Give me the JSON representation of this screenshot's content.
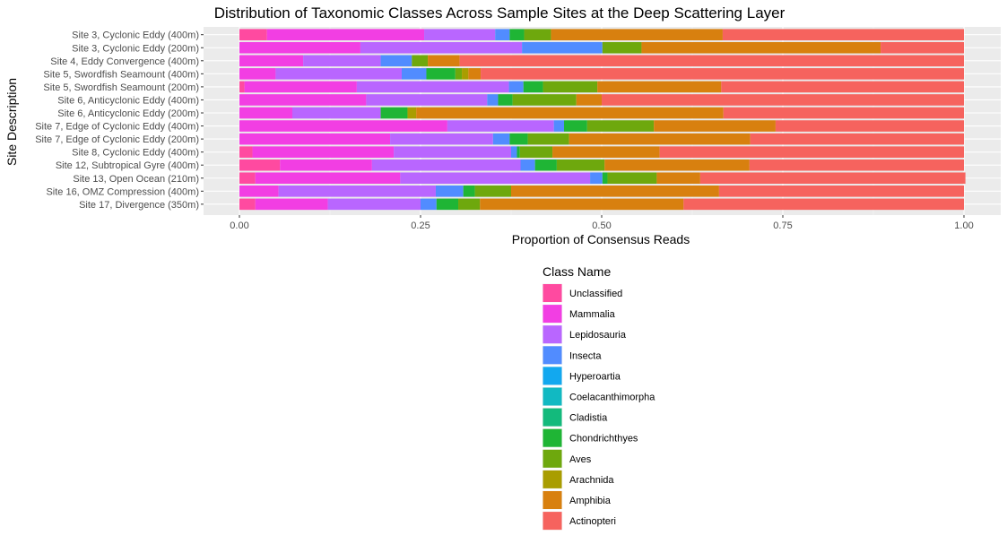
{
  "chart_data": {
    "type": "bar",
    "orientation": "horizontal",
    "stacked": true,
    "title": "Distribution of Taxonomic Classes Across Sample Sites at the Deep Scattering Layer",
    "xlabel": "Proportion of Consensus Reads",
    "ylabel": "Site Description",
    "xlim": [
      0,
      1
    ],
    "x_ticks": [
      0,
      0.25,
      0.5,
      0.75,
      1
    ],
    "x_tick_labels": [
      "0.00",
      "0.25",
      "0.50",
      "0.75",
      "1.00"
    ],
    "grid": true,
    "legend_position": "bottom",
    "legend_title": "Class Name",
    "categories": [
      "Site 3, Cyclonic Eddy (400m)",
      "Site 3, Cyclonic Eddy (200m)",
      "Site 4, Eddy Convergence (400m)",
      "Site 5, Swordfish Seamount (400m)",
      "Site 5, Swordfish Seamount (200m)",
      "Site 6, Anticyclonic Eddy (400m)",
      "Site 6, Anticyclonic Eddy (200m)",
      "Site 7, Edge of Cyclonic Eddy (400m)",
      "Site 7, Edge of Cyclonic Eddy (200m)",
      "Site 8, Cyclonic Eddy (400m)",
      "Site 12, Subtropical Gyre (400m)",
      "Site 13, Open Ocean (210m)",
      "Site 16, OMZ Compression (400m)",
      "Site 17, Divergence (350m)"
    ],
    "series": [
      {
        "name": "Unclassified",
        "color": "#FF4AA0",
        "values": [
          0.038,
          0.0,
          0.0,
          0.0,
          0.007,
          0.0,
          0.0,
          0.0,
          0.0,
          0.018,
          0.056,
          0.022,
          0.0,
          0.022
        ]
      },
      {
        "name": "Mammalia",
        "color": "#F23EE3",
        "values": [
          0.217,
          0.167,
          0.088,
          0.05,
          0.155,
          0.175,
          0.073,
          0.287,
          0.208,
          0.195,
          0.127,
          0.2,
          0.054,
          0.1
        ]
      },
      {
        "name": "Lepidosauria",
        "color": "#B966FF",
        "values": [
          0.098,
          0.223,
          0.107,
          0.174,
          0.21,
          0.167,
          0.122,
          0.147,
          0.142,
          0.162,
          0.205,
          0.262,
          0.217,
          0.128
        ]
      },
      {
        "name": "Insecta",
        "color": "#518CFF",
        "values": [
          0.02,
          0.111,
          0.043,
          0.034,
          0.02,
          0.015,
          0.0,
          0.014,
          0.023,
          0.008,
          0.02,
          0.017,
          0.038,
          0.022
        ]
      },
      {
        "name": "Hyperoartia",
        "color": "#12A8EF",
        "values": [
          0.0,
          0.0,
          0.0,
          0.0,
          0.0,
          0.0,
          0.0,
          0.0,
          0.0,
          0.0,
          0.0,
          0.0,
          0.0,
          0.0
        ]
      },
      {
        "name": "Coelacanthimorpha",
        "color": "#11B9C2",
        "values": [
          0.0,
          0.0,
          0.0,
          0.0,
          0.0,
          0.0,
          0.0,
          0.0,
          0.0,
          0.0,
          0.0,
          0.0,
          0.0,
          0.0
        ]
      },
      {
        "name": "Cladistia",
        "color": "#13BA7C",
        "values": [
          0.0,
          0.0,
          0.0,
          0.0,
          0.0,
          0.0,
          0.0,
          0.0,
          0.0,
          0.0,
          0.0,
          0.0,
          0.0,
          0.0
        ]
      },
      {
        "name": "Chondrichthyes",
        "color": "#1FB535",
        "values": [
          0.02,
          0.0,
          0.0,
          0.04,
          0.027,
          0.02,
          0.037,
          0.032,
          0.025,
          0.004,
          0.03,
          0.007,
          0.016,
          0.03
        ]
      },
      {
        "name": "Aves",
        "color": "#6EA80D",
        "values": [
          0.037,
          0.054,
          0.022,
          0.009,
          0.075,
          0.088,
          0.0,
          0.092,
          0.057,
          0.045,
          0.066,
          0.068,
          0.05,
          0.03
        ]
      },
      {
        "name": "Arachnida",
        "color": "#A99D00",
        "values": [
          0.0,
          0.0,
          0.0,
          0.009,
          0.0,
          0.0,
          0.012,
          0.0,
          0.0,
          0.0,
          0.0,
          0.0,
          0.0,
          0.0
        ]
      },
      {
        "name": "Amphibia",
        "color": "#D8800F",
        "values": [
          0.237,
          0.33,
          0.044,
          0.017,
          0.171,
          0.035,
          0.424,
          0.168,
          0.25,
          0.148,
          0.2,
          0.06,
          0.287,
          0.281
        ]
      },
      {
        "name": "Actinopteri",
        "color": "#F6635E",
        "values": [
          0.333,
          0.115,
          0.696,
          0.667,
          0.335,
          0.5,
          0.332,
          0.26,
          0.295,
          0.42,
          0.296,
          0.366,
          0.338,
          0.387
        ]
      }
    ]
  }
}
